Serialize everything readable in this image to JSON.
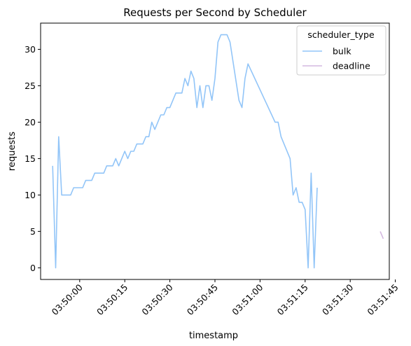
{
  "chart_data": {
    "type": "line",
    "title": "Requests per Second by Scheduler",
    "xlabel": "timestamp",
    "ylabel": "requests",
    "x_unit": "time (HH:MM:SS)",
    "xlim": [
      "03:49:47",
      "03:51:43"
    ],
    "ylim": [
      -1.6,
      33.6
    ],
    "x_ticks": [
      "03:50:00",
      "03:50:15",
      "03:50:30",
      "03:50:45",
      "03:51:00",
      "03:51:15",
      "03:51:30",
      "03:51:45"
    ],
    "y_ticks": [
      0,
      5,
      10,
      15,
      20,
      25,
      30
    ],
    "grid": false,
    "legend": {
      "title": "scheduler_type",
      "placement": "top-right"
    },
    "series": [
      {
        "name": "bulk",
        "color": "#92c5f8",
        "points": [
          [
            "03:49:51",
            14
          ],
          [
            "03:49:52",
            0
          ],
          [
            "03:49:53",
            18
          ],
          [
            "03:49:54",
            10
          ],
          [
            "03:49:55",
            10
          ],
          [
            "03:49:56",
            10
          ],
          [
            "03:49:57",
            10
          ],
          [
            "03:49:58",
            11
          ],
          [
            "03:49:59",
            11
          ],
          [
            "03:50:00",
            11
          ],
          [
            "03:50:01",
            11
          ],
          [
            "03:50:02",
            12
          ],
          [
            "03:50:03",
            12
          ],
          [
            "03:50:04",
            12
          ],
          [
            "03:50:05",
            13
          ],
          [
            "03:50:06",
            13
          ],
          [
            "03:50:07",
            13
          ],
          [
            "03:50:08",
            13
          ],
          [
            "03:50:09",
            14
          ],
          [
            "03:50:10",
            14
          ],
          [
            "03:50:11",
            14
          ],
          [
            "03:50:12",
            15
          ],
          [
            "03:50:13",
            14
          ],
          [
            "03:50:14",
            15
          ],
          [
            "03:50:15",
            16
          ],
          [
            "03:50:16",
            15
          ],
          [
            "03:50:17",
            16
          ],
          [
            "03:50:18",
            16
          ],
          [
            "03:50:19",
            17
          ],
          [
            "03:50:20",
            17
          ],
          [
            "03:50:21",
            17
          ],
          [
            "03:50:22",
            18
          ],
          [
            "03:50:23",
            18
          ],
          [
            "03:50:24",
            20
          ],
          [
            "03:50:25",
            19
          ],
          [
            "03:50:26",
            20
          ],
          [
            "03:50:27",
            21
          ],
          [
            "03:50:28",
            21
          ],
          [
            "03:50:29",
            22
          ],
          [
            "03:50:30",
            22
          ],
          [
            "03:50:31",
            23
          ],
          [
            "03:50:32",
            24
          ],
          [
            "03:50:33",
            24
          ],
          [
            "03:50:34",
            24
          ],
          [
            "03:50:35",
            26
          ],
          [
            "03:50:36",
            25
          ],
          [
            "03:50:37",
            27
          ],
          [
            "03:50:38",
            26
          ],
          [
            "03:50:39",
            22
          ],
          [
            "03:50:40",
            25
          ],
          [
            "03:50:41",
            22
          ],
          [
            "03:50:42",
            25
          ],
          [
            "03:50:43",
            25
          ],
          [
            "03:50:44",
            23
          ],
          [
            "03:50:45",
            26
          ],
          [
            "03:50:46",
            31
          ],
          [
            "03:50:47",
            32
          ],
          [
            "03:50:48",
            32
          ],
          [
            "03:50:49",
            32
          ],
          [
            "03:50:50",
            31
          ],
          [
            "03:50:53",
            23
          ],
          [
            "03:50:54",
            22
          ],
          [
            "03:50:55",
            26
          ],
          [
            "03:50:56",
            28
          ],
          [
            "03:51:05",
            20
          ],
          [
            "03:51:06",
            20
          ],
          [
            "03:51:07",
            18
          ],
          [
            "03:51:10",
            15
          ],
          [
            "03:51:11",
            10
          ],
          [
            "03:51:12",
            11
          ],
          [
            "03:51:13",
            9
          ],
          [
            "03:51:14",
            9
          ],
          [
            "03:51:15",
            8
          ],
          [
            "03:51:16",
            0
          ],
          [
            "03:51:17",
            13
          ],
          [
            "03:51:18",
            0
          ],
          [
            "03:51:19",
            11
          ]
        ]
      },
      {
        "name": "deadline",
        "color": "#d4b8e0",
        "points": [
          [
            "03:51:40",
            5
          ],
          [
            "03:51:41",
            4
          ]
        ]
      }
    ]
  }
}
